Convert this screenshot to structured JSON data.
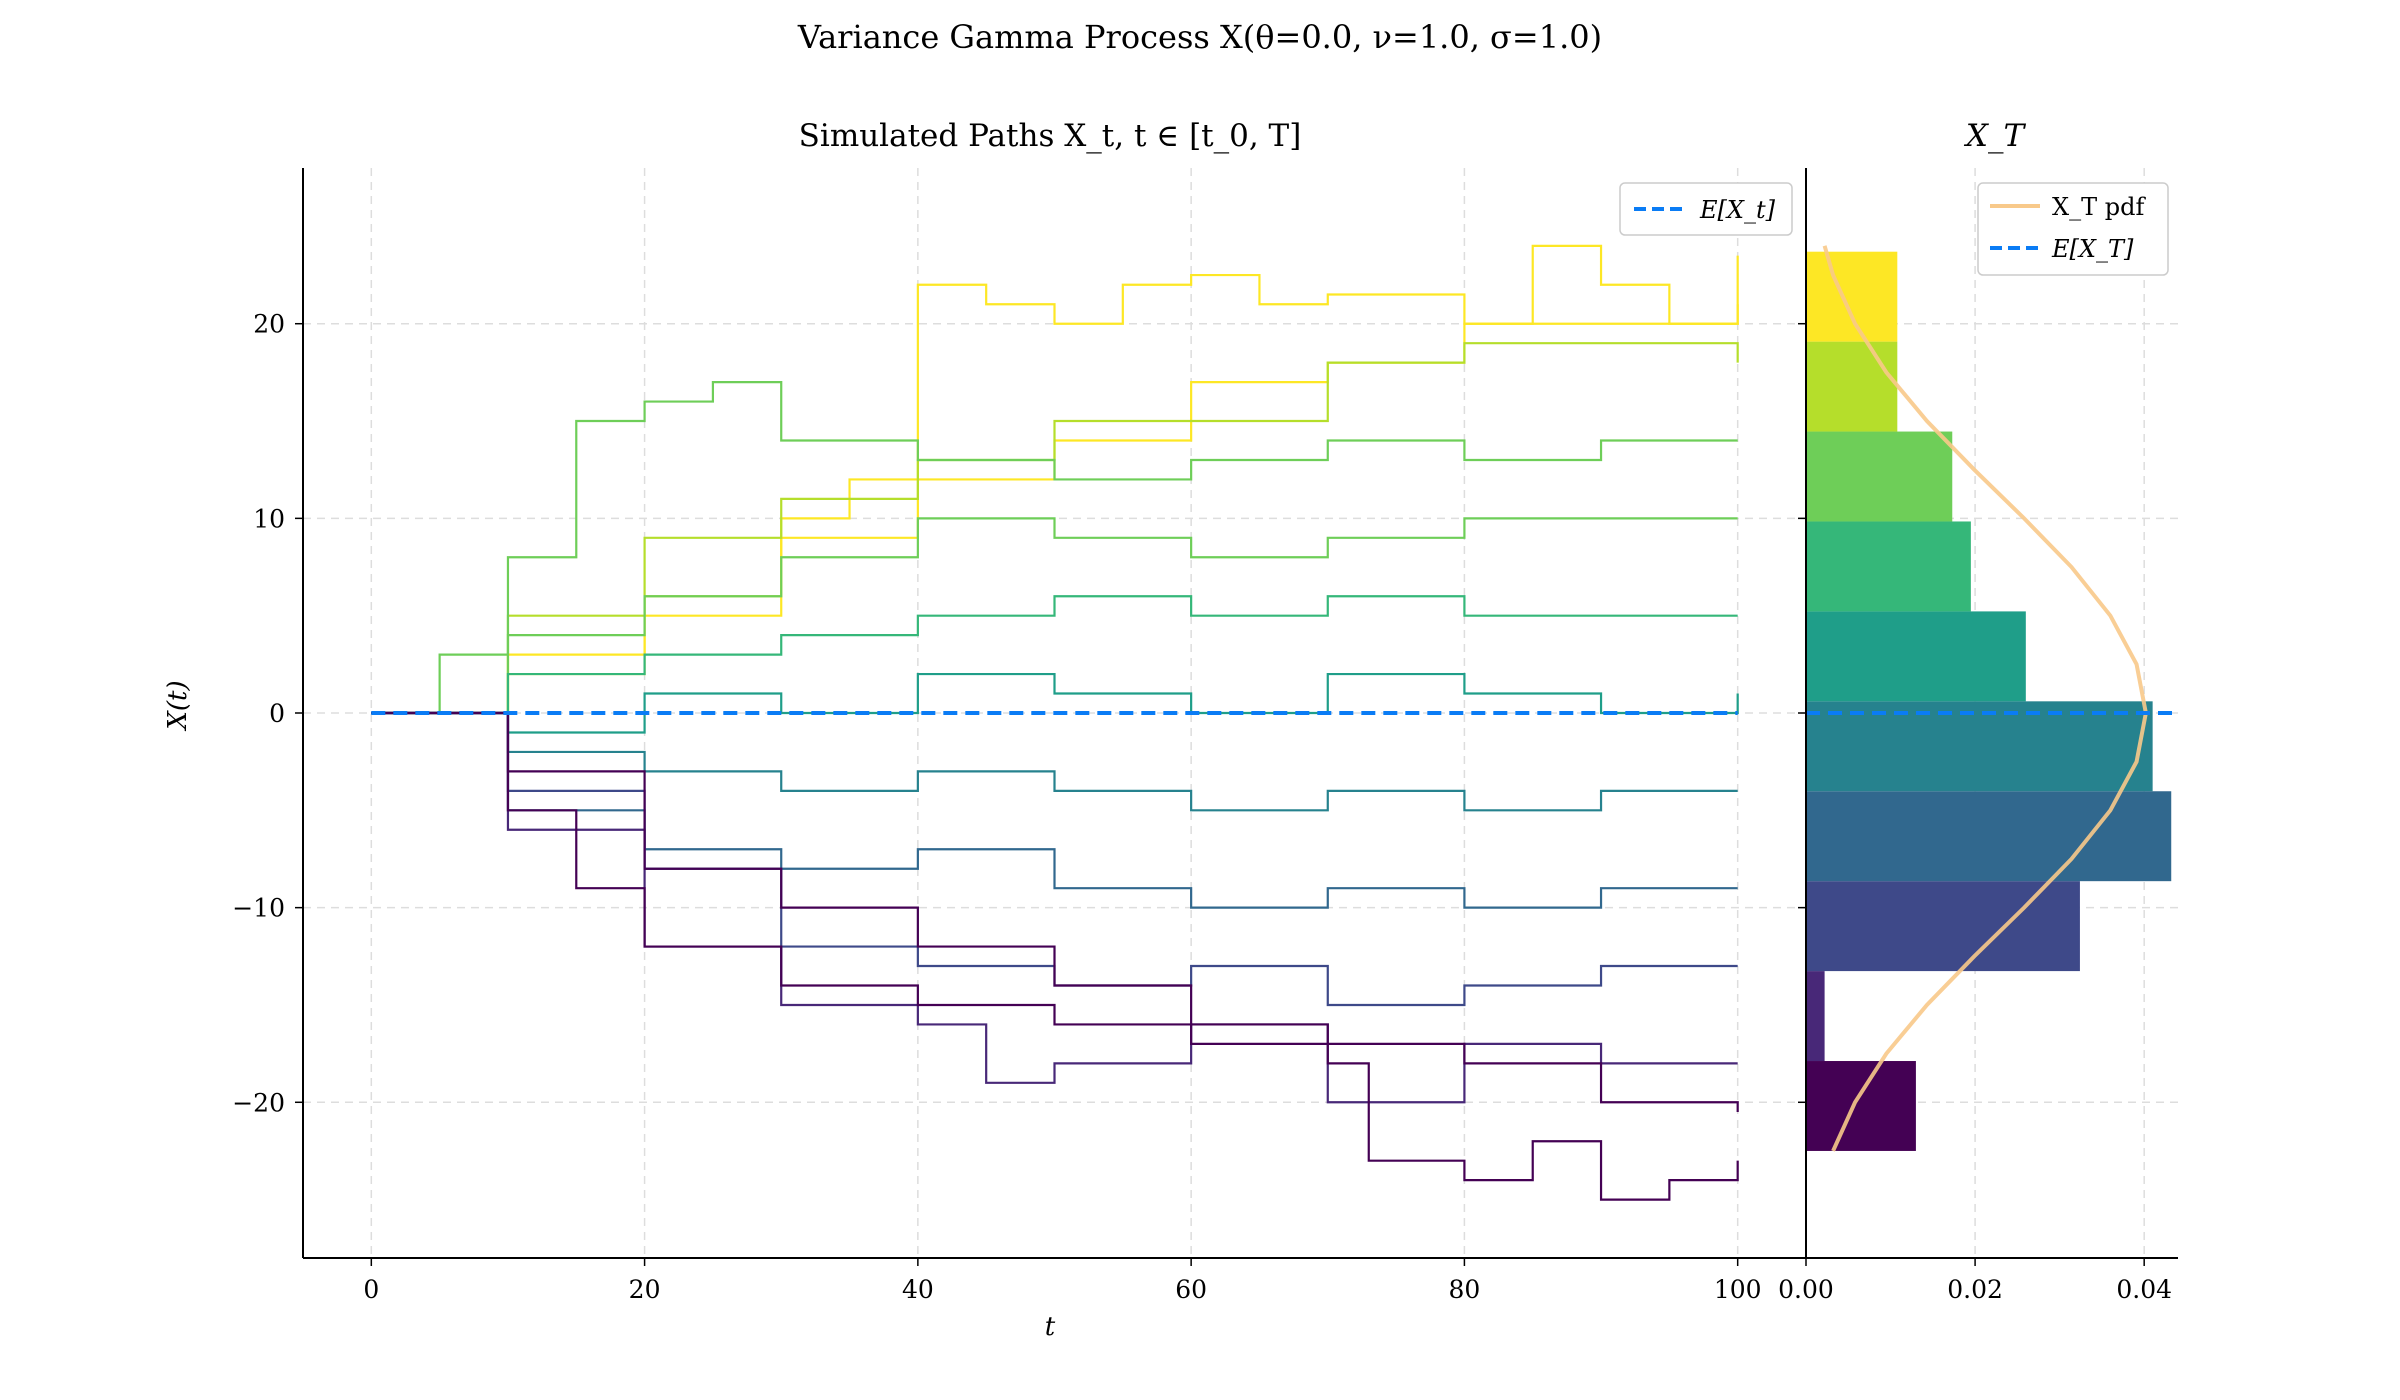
{
  "figure": {
    "suptitle": "Variance Gamma Process X(θ=0.0, ν=1.0, σ=1.0)"
  },
  "chart_data": [
    {
      "type": "line",
      "title": "Simulated Paths X_t, t ∈ [t_0, T]",
      "xlabel": "t",
      "ylabel": "X(t)",
      "xlim": [
        -5,
        105
      ],
      "ylim": [
        -28,
        28
      ],
      "xticks": [
        0,
        20,
        40,
        60,
        80,
        100
      ],
      "xtick_labels": [
        "0",
        "20",
        "40",
        "60",
        "80",
        "100"
      ],
      "yticks": [
        -20,
        -10,
        0,
        10,
        20
      ],
      "ytick_labels": [
        "−20",
        "−10",
        "0",
        "10",
        "20"
      ],
      "grid": true,
      "legend": {
        "placement": "upper-right",
        "entries": [
          "E[X_t]"
        ]
      },
      "series_style": "step paths colored by final value (viridis colormap)",
      "expectation": {
        "name": "E[X_t]",
        "x": [
          0,
          100
        ],
        "y": [
          0,
          0
        ],
        "color": "#0a7cf5",
        "style": "dashed"
      },
      "representative_paths": [
        {
          "final": 23.5,
          "points": [
            [
              0,
              0
            ],
            [
              10,
              3
            ],
            [
              20,
              6
            ],
            [
              30,
              9
            ],
            [
              40,
              12
            ],
            [
              50,
              14
            ],
            [
              60,
              17
            ],
            [
              70,
              18
            ],
            [
              80,
              20
            ],
            [
              85,
              24
            ],
            [
              90,
              22
            ],
            [
              95,
              20
            ],
            [
              100,
              23.5
            ]
          ]
        },
        {
          "final": 21,
          "points": [
            [
              0,
              0
            ],
            [
              10,
              2
            ],
            [
              20,
              5
            ],
            [
              30,
              10
            ],
            [
              35,
              12
            ],
            [
              40,
              22
            ],
            [
              45,
              21
            ],
            [
              50,
              20
            ],
            [
              55,
              22
            ],
            [
              60,
              22.5
            ],
            [
              65,
              21
            ],
            [
              70,
              21.5
            ],
            [
              80,
              20
            ],
            [
              90,
              20
            ],
            [
              100,
              21
            ]
          ]
        },
        {
          "final": 18,
          "points": [
            [
              0,
              0
            ],
            [
              10,
              5
            ],
            [
              20,
              9
            ],
            [
              30,
              11
            ],
            [
              40,
              13
            ],
            [
              50,
              15
            ],
            [
              60,
              15
            ],
            [
              70,
              18
            ],
            [
              80,
              19
            ],
            [
              90,
              19
            ],
            [
              100,
              18
            ]
          ]
        },
        {
          "final": 14,
          "points": [
            [
              0,
              0
            ],
            [
              5,
              3
            ],
            [
              10,
              8
            ],
            [
              15,
              15
            ],
            [
              20,
              16
            ],
            [
              25,
              17
            ],
            [
              30,
              14
            ],
            [
              40,
              13
            ],
            [
              50,
              12
            ],
            [
              60,
              13
            ],
            [
              70,
              14
            ],
            [
              80,
              13
            ],
            [
              90,
              14
            ],
            [
              100,
              14
            ]
          ]
        },
        {
          "final": 10,
          "points": [
            [
              0,
              0
            ],
            [
              10,
              4
            ],
            [
              20,
              6
            ],
            [
              30,
              8
            ],
            [
              40,
              10
            ],
            [
              50,
              9
            ],
            [
              60,
              8
            ],
            [
              70,
              9
            ],
            [
              80,
              10
            ],
            [
              90,
              10
            ],
            [
              100,
              10
            ]
          ]
        },
        {
          "final": 5,
          "points": [
            [
              0,
              0
            ],
            [
              10,
              2
            ],
            [
              20,
              3
            ],
            [
              30,
              4
            ],
            [
              40,
              5
            ],
            [
              50,
              6
            ],
            [
              60,
              5
            ],
            [
              70,
              6
            ],
            [
              80,
              5
            ],
            [
              90,
              5
            ],
            [
              100,
              5
            ]
          ]
        },
        {
          "final": 1,
          "points": [
            [
              0,
              0
            ],
            [
              10,
              -1
            ],
            [
              20,
              1
            ],
            [
              30,
              0
            ],
            [
              40,
              2
            ],
            [
              50,
              1
            ],
            [
              60,
              0
            ],
            [
              70,
              2
            ],
            [
              80,
              1
            ],
            [
              90,
              0
            ],
            [
              100,
              1
            ]
          ]
        },
        {
          "final": -4,
          "points": [
            [
              0,
              0
            ],
            [
              10,
              -2
            ],
            [
              20,
              -3
            ],
            [
              30,
              -4
            ],
            [
              40,
              -3
            ],
            [
              50,
              -4
            ],
            [
              60,
              -5
            ],
            [
              70,
              -4
            ],
            [
              80,
              -5
            ],
            [
              90,
              -4
            ],
            [
              100,
              -4
            ]
          ]
        },
        {
          "final": -9,
          "points": [
            [
              0,
              0
            ],
            [
              10,
              -5
            ],
            [
              20,
              -7
            ],
            [
              30,
              -8
            ],
            [
              40,
              -7
            ],
            [
              50,
              -9
            ],
            [
              60,
              -10
            ],
            [
              70,
              -9
            ],
            [
              80,
              -10
            ],
            [
              90,
              -9
            ],
            [
              100,
              -9
            ]
          ]
        },
        {
          "final": -13,
          "points": [
            [
              0,
              0
            ],
            [
              10,
              -4
            ],
            [
              20,
              -8
            ],
            [
              30,
              -12
            ],
            [
              40,
              -13
            ],
            [
              50,
              -14
            ],
            [
              60,
              -13
            ],
            [
              70,
              -15
            ],
            [
              80,
              -14
            ],
            [
              90,
              -13
            ],
            [
              100,
              -13
            ]
          ]
        },
        {
          "final": -18,
          "points": [
            [
              0,
              0
            ],
            [
              10,
              -6
            ],
            [
              20,
              -12
            ],
            [
              30,
              -15
            ],
            [
              40,
              -16
            ],
            [
              45,
              -19
            ],
            [
              50,
              -18
            ],
            [
              60,
              -16
            ],
            [
              70,
              -20
            ],
            [
              80,
              -17
            ],
            [
              90,
              -18
            ],
            [
              100,
              -18
            ]
          ]
        },
        {
          "final": -20.5,
          "points": [
            [
              0,
              0
            ],
            [
              10,
              -3
            ],
            [
              20,
              -8
            ],
            [
              30,
              -10
            ],
            [
              40,
              -12
            ],
            [
              50,
              -14
            ],
            [
              60,
              -16
            ],
            [
              70,
              -17
            ],
            [
              80,
              -18
            ],
            [
              90,
              -20
            ],
            [
              100,
              -20.5
            ]
          ]
        },
        {
          "final": -23,
          "points": [
            [
              0,
              0
            ],
            [
              10,
              -5
            ],
            [
              15,
              -9
            ],
            [
              20,
              -12
            ],
            [
              30,
              -14
            ],
            [
              40,
              -15
            ],
            [
              50,
              -16
            ],
            [
              60,
              -17
            ],
            [
              70,
              -18
            ],
            [
              73,
              -23
            ],
            [
              80,
              -24
            ],
            [
              85,
              -22
            ],
            [
              90,
              -25
            ],
            [
              95,
              -24
            ],
            [
              100,
              -23
            ]
          ]
        }
      ]
    },
    {
      "type": "bar",
      "orientation": "horizontal",
      "title": "X_T",
      "xlim": [
        0,
        0.044
      ],
      "xticks": [
        0.0,
        0.02,
        0.04
      ],
      "xtick_labels": [
        "0.00",
        "0.02",
        "0.04"
      ],
      "grid": true,
      "legend": {
        "placement": "upper-right",
        "entries": [
          "X_T pdf",
          "E[X_T]"
        ]
      },
      "bins": [
        {
          "y0": -22.5,
          "y1": -17.88,
          "value": 0.013,
          "color": "#440154"
        },
        {
          "y0": -17.88,
          "y1": -13.26,
          "value": 0.0022,
          "color": "#482878"
        },
        {
          "y0": -13.26,
          "y1": -8.64,
          "value": 0.0324,
          "color": "#3e4989"
        },
        {
          "y0": -8.64,
          "y1": -4.02,
          "value": 0.0432,
          "color": "#31688e"
        },
        {
          "y0": -4.02,
          "y1": 0.6,
          "value": 0.041,
          "color": "#26828e"
        },
        {
          "y0": 0.6,
          "y1": 5.22,
          "value": 0.026,
          "color": "#1f9e89"
        },
        {
          "y0": 5.22,
          "y1": 9.84,
          "value": 0.0195,
          "color": "#35b779"
        },
        {
          "y0": 9.84,
          "y1": 14.46,
          "value": 0.0173,
          "color": "#6ece58"
        },
        {
          "y0": 14.46,
          "y1": 19.08,
          "value": 0.0108,
          "color": "#b5de2b"
        },
        {
          "y0": 19.08,
          "y1": 23.7,
          "value": 0.0108,
          "color": "#fde725"
        }
      ],
      "pdf": {
        "name": "X_T pdf",
        "color": "#f8c98a",
        "y": [
          -22.5,
          -20,
          -17.5,
          -15,
          -12.5,
          -10,
          -7.5,
          -5,
          -2.5,
          0,
          2.5,
          5,
          7.5,
          10,
          12.5,
          15,
          17.5,
          20,
          22.5,
          24
        ],
        "x": [
          0.0032,
          0.0058,
          0.0095,
          0.0143,
          0.0199,
          0.0258,
          0.0314,
          0.036,
          0.0391,
          0.0402,
          0.0391,
          0.036,
          0.0314,
          0.0258,
          0.0199,
          0.0143,
          0.0095,
          0.0058,
          0.0032,
          0.0022
        ]
      },
      "expectation": {
        "name": "E[X_T]",
        "y": 0,
        "color": "#0a7cf5",
        "style": "dashed"
      }
    }
  ]
}
